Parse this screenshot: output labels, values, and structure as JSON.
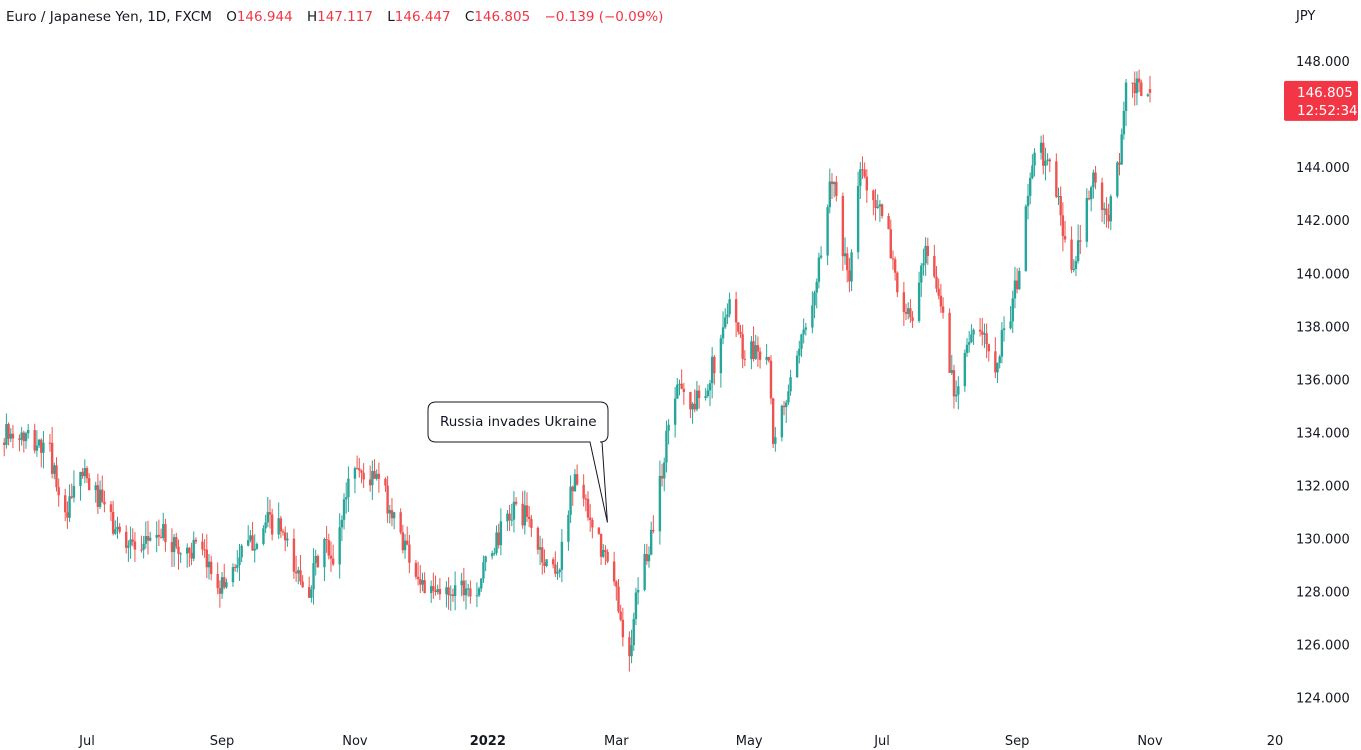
{
  "legend": {
    "symbol": "Euro / Japanese Yen, 1D, FXCM",
    "open_label": "O",
    "open": "146.944",
    "high_label": "H",
    "high": "147.117",
    "low_label": "L",
    "low": "146.447",
    "close_label": "C",
    "close": "146.805",
    "change": "−0.139 (−0.09%)"
  },
  "colors": {
    "up": "#26a69a",
    "down": "#ef5350",
    "tag": "#f23645",
    "axis_text": "#131722"
  },
  "chart_data": {
    "type": "candlestick",
    "title": "Euro / Japanese Yen, 1D, FXCM",
    "ylabel": "JPY",
    "ylim": [
      123.3,
      149.1
    ],
    "y_ticks": [
      "124.000",
      "126.000",
      "128.000",
      "130.000",
      "132.000",
      "134.000",
      "136.000",
      "138.000",
      "140.000",
      "142.000",
      "144.000",
      "146.000",
      "148.000"
    ],
    "x_ticks": [
      {
        "label": "Jul",
        "date": "2021-07-01",
        "bold": false
      },
      {
        "label": "Sep",
        "date": "2021-09-01",
        "bold": false
      },
      {
        "label": "Nov",
        "date": "2021-11-01",
        "bold": false
      },
      {
        "label": "2022",
        "date": "2022-01-01",
        "bold": true
      },
      {
        "label": "Mar",
        "date": "2022-03-01",
        "bold": false
      },
      {
        "label": "May",
        "date": "2022-05-01",
        "bold": false
      },
      {
        "label": "Jul",
        "date": "2022-07-01",
        "bold": false
      },
      {
        "label": "Sep",
        "date": "2022-09-01",
        "bold": false
      },
      {
        "label": "Nov",
        "date": "2022-11-01",
        "bold": false
      },
      {
        "label": "20",
        "date": "2023-01-01",
        "bold": false
      }
    ],
    "last_price": {
      "value": 146.805,
      "label": "146.805",
      "countdown": "12:52:34"
    },
    "annotation": {
      "text": "Russia invades Ukraine",
      "date": "2022-02-24",
      "price": 130.6
    },
    "closes": [
      {
        "date": "2021-05-10",
        "close": 133.0
      },
      {
        "date": "2021-05-25",
        "close": 133.9
      },
      {
        "date": "2021-06-01",
        "close": 133.8
      },
      {
        "date": "2021-06-07",
        "close": 133.6
      },
      {
        "date": "2021-06-14",
        "close": 133.2
      },
      {
        "date": "2021-06-18",
        "close": 131.9
      },
      {
        "date": "2021-06-21",
        "close": 130.6
      },
      {
        "date": "2021-06-28",
        "close": 132.5
      },
      {
        "date": "2021-07-02",
        "close": 132.0
      },
      {
        "date": "2021-07-09",
        "close": 131.2
      },
      {
        "date": "2021-07-14",
        "close": 130.3
      },
      {
        "date": "2021-07-21",
        "close": 129.9
      },
      {
        "date": "2021-07-26",
        "close": 129.2
      },
      {
        "date": "2021-07-30",
        "close": 130.2
      },
      {
        "date": "2021-08-06",
        "close": 130.1
      },
      {
        "date": "2021-08-13",
        "close": 129.5
      },
      {
        "date": "2021-08-20",
        "close": 129.6
      },
      {
        "date": "2021-08-27",
        "close": 128.8
      },
      {
        "date": "2021-09-01",
        "close": 128.2
      },
      {
        "date": "2021-09-08",
        "close": 129.2
      },
      {
        "date": "2021-09-15",
        "close": 129.9
      },
      {
        "date": "2021-09-22",
        "close": 130.6
      },
      {
        "date": "2021-09-28",
        "close": 130.3
      },
      {
        "date": "2021-10-04",
        "close": 128.8
      },
      {
        "date": "2021-10-11",
        "close": 128.2
      },
      {
        "date": "2021-10-18",
        "close": 129.9
      },
      {
        "date": "2021-10-22",
        "close": 128.8
      },
      {
        "date": "2021-10-26",
        "close": 130.9
      },
      {
        "date": "2021-10-31",
        "close": 133.0
      },
      {
        "date": "2021-11-05",
        "close": 132.3
      },
      {
        "date": "2021-11-12",
        "close": 132.2
      },
      {
        "date": "2021-11-19",
        "close": 130.7
      },
      {
        "date": "2021-11-25",
        "close": 129.6
      },
      {
        "date": "2021-11-30",
        "close": 128.6
      },
      {
        "date": "2021-12-06",
        "close": 127.8
      },
      {
        "date": "2021-12-13",
        "close": 128.0
      },
      {
        "date": "2021-12-20",
        "close": 128.3
      },
      {
        "date": "2021-12-27",
        "close": 128.1
      },
      {
        "date": "2022-01-03",
        "close": 129.6
      },
      {
        "date": "2022-01-10",
        "close": 130.7
      },
      {
        "date": "2022-01-14",
        "close": 131.2
      },
      {
        "date": "2022-01-20",
        "close": 130.6
      },
      {
        "date": "2022-01-27",
        "close": 129.1
      },
      {
        "date": "2022-02-03",
        "close": 128.9
      },
      {
        "date": "2022-02-08",
        "close": 131.9
      },
      {
        "date": "2022-02-12",
        "close": 132.4
      },
      {
        "date": "2022-02-16",
        "close": 130.6
      },
      {
        "date": "2022-02-22",
        "close": 129.6
      },
      {
        "date": "2022-02-27",
        "close": 128.6
      },
      {
        "date": "2022-03-02",
        "close": 127.6
      },
      {
        "date": "2022-03-07",
        "close": 125.2
      },
      {
        "date": "2022-03-11",
        "close": 128.3
      },
      {
        "date": "2022-03-16",
        "close": 129.7
      },
      {
        "date": "2022-03-21",
        "close": 132.0
      },
      {
        "date": "2022-03-25",
        "close": 134.3
      },
      {
        "date": "2022-03-30",
        "close": 136.2
      },
      {
        "date": "2022-04-04",
        "close": 134.8
      },
      {
        "date": "2022-04-11",
        "close": 135.8
      },
      {
        "date": "2022-04-18",
        "close": 137.2
      },
      {
        "date": "2022-04-22",
        "close": 139.4
      },
      {
        "date": "2022-04-28",
        "close": 137.1
      },
      {
        "date": "2022-05-05",
        "close": 137.2
      },
      {
        "date": "2022-05-10",
        "close": 136.8
      },
      {
        "date": "2022-05-12",
        "close": 133.2
      },
      {
        "date": "2022-05-17",
        "close": 135.1
      },
      {
        "date": "2022-05-23",
        "close": 136.5
      },
      {
        "date": "2022-05-30",
        "close": 139.2
      },
      {
        "date": "2022-06-03",
        "close": 140.9
      },
      {
        "date": "2022-06-08",
        "close": 143.8
      },
      {
        "date": "2022-06-13",
        "close": 140.6
      },
      {
        "date": "2022-06-16",
        "close": 139.8
      },
      {
        "date": "2022-06-21",
        "close": 143.9
      },
      {
        "date": "2022-06-27",
        "close": 143.0
      },
      {
        "date": "2022-07-04",
        "close": 141.3
      },
      {
        "date": "2022-07-11",
        "close": 138.3
      },
      {
        "date": "2022-07-15",
        "close": 138.4
      },
      {
        "date": "2022-07-21",
        "close": 140.6
      },
      {
        "date": "2022-07-28",
        "close": 138.9
      },
      {
        "date": "2022-08-03",
        "close": 135.5
      },
      {
        "date": "2022-08-08",
        "close": 137.2
      },
      {
        "date": "2022-08-15",
        "close": 137.8
      },
      {
        "date": "2022-08-22",
        "close": 136.7
      },
      {
        "date": "2022-08-29",
        "close": 138.6
      },
      {
        "date": "2022-09-02",
        "close": 140.0
      },
      {
        "date": "2022-09-07",
        "close": 143.9
      },
      {
        "date": "2022-09-12",
        "close": 144.6
      },
      {
        "date": "2022-09-19",
        "close": 143.2
      },
      {
        "date": "2022-09-26",
        "close": 139.8
      },
      {
        "date": "2022-09-30",
        "close": 141.3
      },
      {
        "date": "2022-10-06",
        "close": 143.6
      },
      {
        "date": "2022-10-12",
        "close": 141.8
      },
      {
        "date": "2022-10-18",
        "close": 144.5
      },
      {
        "date": "2022-10-21",
        "close": 146.8
      },
      {
        "date": "2022-10-26",
        "close": 147.0
      },
      {
        "date": "2022-10-28",
        "close": 146.6
      },
      {
        "date": "2022-11-01",
        "close": 146.805
      }
    ]
  }
}
